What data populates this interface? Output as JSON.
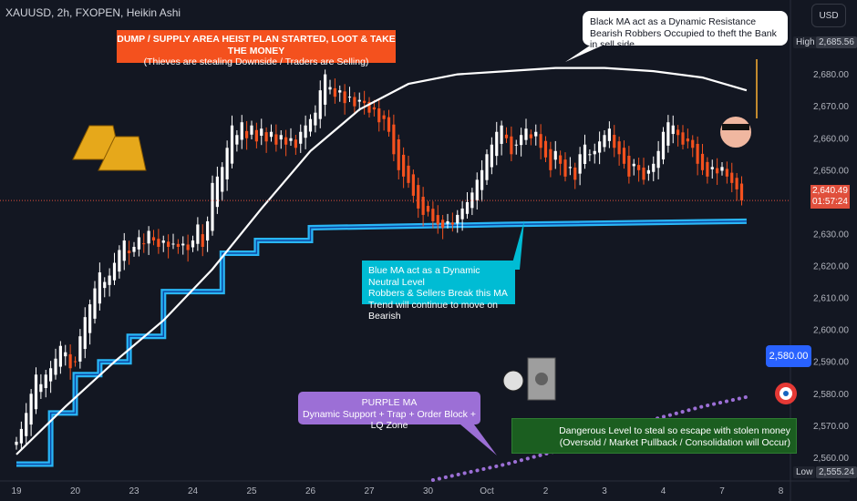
{
  "header": {
    "symbol_line": "XAUUSD, 2h, FXOPEN, Heikin Ashi"
  },
  "scale_button": "USD",
  "colors": {
    "background": "#131722",
    "bull": "#ffffff",
    "bear": "#f4511e",
    "white_ma": "#ffffff",
    "blue_ma": "#29b6f6",
    "purple_ma": "#9c6fd6",
    "price_line": "#e04f3c"
  },
  "annotations": {
    "dump": [
      "DUMP / SUPPLY AREA HEIST PLAN STARTED, LOOT & TAKE THE MONEY",
      "(Thieves are stealing Downside / Traders are Selling)"
    ],
    "black_ma": [
      "Black MA act as a Dynamic Resistance",
      "Bearish Robbers Occupied to theft the Bank in sell side"
    ],
    "blue_ma": [
      "Blue MA act as a Dynamic Neutral Level",
      "Robbers & Sellers Break this MA",
      "Trend will continue to move on Bearish"
    ],
    "purple_ma": [
      "PURPLE MA",
      "Dynamic Support + Trap + Order Block + LQ Zone"
    ],
    "danger": [
      "Dangerous Level to steal so escape with stolen money",
      "(Oversold / Market Pullback / Consolidation will Occur)"
    ]
  },
  "labels": {
    "target": "2,580.00",
    "current_price": "2,640.49",
    "countdown": "01:57:24",
    "high_tag": "High",
    "high_value": "2,685.56",
    "low_tag": "Low",
    "low_value": "2,555.24"
  },
  "chart_data": {
    "type": "candlestick",
    "chart_style": "Heikin Ashi",
    "timeframe": "2h",
    "y_axis": {
      "side": "right",
      "ylim": [
        2553,
        2697
      ],
      "ticks": [
        2560,
        2570,
        2580,
        2590,
        2600,
        2610,
        2620,
        2630,
        2640,
        2650,
        2660,
        2670,
        2680
      ],
      "tick_labels": [
        "2,560.00",
        "2,570.00",
        "2,580.00",
        "2,590.00",
        "2,600.00",
        "2,610.00",
        "2,620.00",
        "2,630.00",
        "2,640.00",
        "2,650.00",
        "2,660.00",
        "2,670.00",
        "2,680.00"
      ]
    },
    "x_axis": {
      "tick_labels": [
        "19",
        "20",
        "23",
        "24",
        "25",
        "26",
        "27",
        "30",
        "Oct",
        "2",
        "3",
        "4",
        "7",
        "8"
      ],
      "tick_bar_index": [
        0,
        12,
        24,
        36,
        48,
        60,
        72,
        84,
        96,
        108,
        120,
        132,
        144,
        156
      ]
    },
    "close": [
      2565,
      2569,
      2574,
      2580,
      2586,
      2583,
      2586,
      2588,
      2591,
      2595,
      2593,
      2588,
      2590,
      2598,
      2604,
      2608,
      2613,
      2618,
      2615,
      2617,
      2621,
      2625,
      2628,
      2624,
      2626,
      2629,
      2627,
      2631,
      2628,
      2626,
      2628,
      2626,
      2627,
      2626,
      2627,
      2625,
      2628,
      2633,
      2626,
      2634,
      2646,
      2648,
      2651,
      2657,
      2664,
      2661,
      2665,
      2660,
      2664,
      2659,
      2663,
      2659,
      2662,
      2658,
      2661,
      2658,
      2660,
      2657,
      2662,
      2664,
      2666,
      2668,
      2675,
      2680,
      2676,
      2673,
      2675,
      2671,
      2673,
      2670,
      2672,
      2671,
      2668,
      2669,
      2665,
      2666,
      2662,
      2655,
      2650,
      2648,
      2646,
      2642,
      2638,
      2636,
      2637,
      2634,
      2633,
      2632,
      2634,
      2633,
      2636,
      2638,
      2640,
      2643,
      2647,
      2650,
      2655,
      2658,
      2662,
      2664,
      2660,
      2655,
      2658,
      2661,
      2663,
      2660,
      2662,
      2657,
      2654,
      2650,
      2656,
      2652,
      2648,
      2651,
      2647,
      2655,
      2658,
      2655,
      2656,
      2659,
      2661,
      2663,
      2657,
      2655,
      2652,
      2648,
      2652,
      2650,
      2647,
      2650,
      2652,
      2656,
      2662,
      2665,
      2664,
      2661,
      2658,
      2659,
      2657,
      2652,
      2650,
      2648,
      2651,
      2649,
      2651,
      2648,
      2646,
      2644,
      2640.49
    ],
    "high": 2685.56,
    "low": 2555.24,
    "white_ma": [
      [
        0,
        2561
      ],
      [
        10,
        2576
      ],
      [
        20,
        2590
      ],
      [
        30,
        2603
      ],
      [
        40,
        2619
      ],
      [
        50,
        2638
      ],
      [
        60,
        2656
      ],
      [
        70,
        2669
      ],
      [
        80,
        2677
      ],
      [
        90,
        2680
      ],
      [
        100,
        2681
      ],
      [
        110,
        2682
      ],
      [
        120,
        2682
      ],
      [
        130,
        2681
      ],
      [
        140,
        2679
      ],
      [
        149,
        2675
      ]
    ],
    "blue_ma": [
      [
        0,
        2558
      ],
      [
        7,
        2558
      ],
      [
        7,
        2574
      ],
      [
        12,
        2574
      ],
      [
        12,
        2586
      ],
      [
        17,
        2586
      ],
      [
        17,
        2590
      ],
      [
        23,
        2590
      ],
      [
        23,
        2598
      ],
      [
        30,
        2598
      ],
      [
        30,
        2612
      ],
      [
        42,
        2612
      ],
      [
        42,
        2624
      ],
      [
        49,
        2624
      ],
      [
        49,
        2628
      ],
      [
        60,
        2628
      ],
      [
        60,
        2632
      ],
      [
        100,
        2633
      ],
      [
        149,
        2634
      ]
    ],
    "purple_ma": [
      [
        85,
        2553
      ],
      [
        100,
        2558
      ],
      [
        110,
        2562
      ],
      [
        120,
        2567
      ],
      [
        130,
        2572
      ],
      [
        140,
        2576
      ],
      [
        149,
        2579
      ]
    ],
    "price_line": 2640.49,
    "target_level": 2580.0
  }
}
